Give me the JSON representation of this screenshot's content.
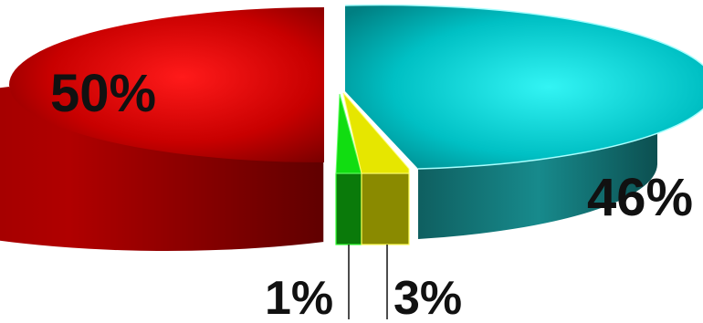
{
  "chart_data": {
    "type": "pie",
    "style": "3d-exploded",
    "title": "",
    "legend": "none",
    "slices": [
      {
        "label": "50%",
        "value": 50,
        "color": "#d40000"
      },
      {
        "label": "46%",
        "value": 46,
        "color": "#00c8cc"
      },
      {
        "label": "1%",
        "value": 1,
        "color": "#22cc22"
      },
      {
        "label": "3%",
        "value": 3,
        "color": "#dddd00"
      }
    ]
  }
}
